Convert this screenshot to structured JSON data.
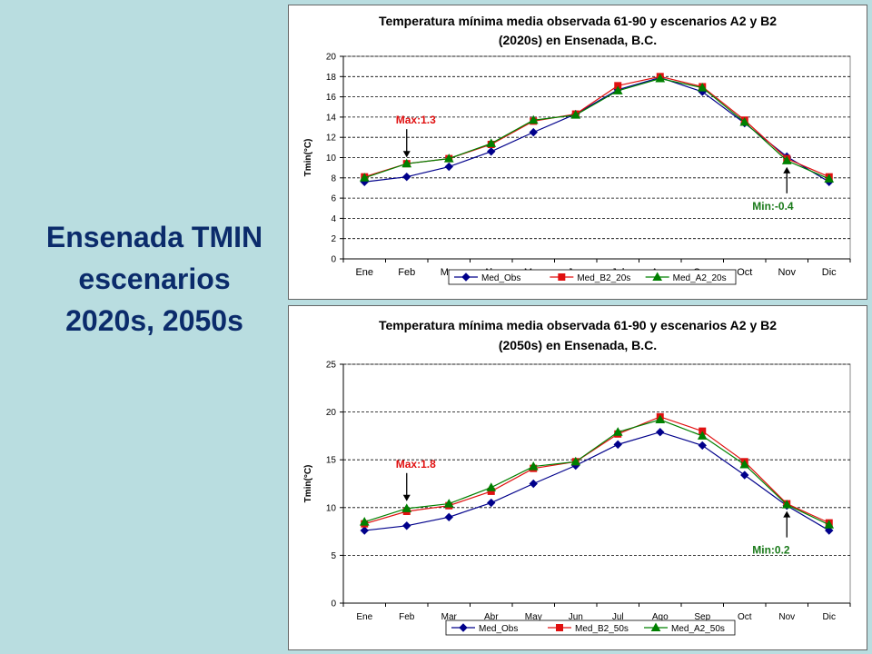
{
  "slide": {
    "title_lines": [
      "Ensenada TMIN",
      "escenarios",
      "2020s, 2050s"
    ]
  },
  "colors": {
    "obs": "#00008b",
    "b2": "#e01010",
    "a2": "#008000",
    "annot_max": "#e01010",
    "annot_min": "#1a7a1a"
  },
  "chart_data": [
    {
      "type": "line",
      "title_lines": [
        "Temperatura mínima media observada 61-90 y escenarios A2 y B2",
        "(2020s) en Ensenada, B.C."
      ],
      "xlabel": "",
      "ylabel": "Tmin(°C)",
      "categories": [
        "Ene",
        "Feb",
        "Mar",
        "Abr",
        "May",
        "Jun",
        "Jul",
        "Ago",
        "Sep",
        "Oct",
        "Nov",
        "Dic"
      ],
      "ylim": [
        0,
        20
      ],
      "yticks": [
        0,
        2,
        4,
        6,
        8,
        10,
        12,
        14,
        16,
        18,
        20
      ],
      "grid": true,
      "legend": "bottom",
      "series": [
        {
          "name": "Med_Obs",
          "marker": "diamond",
          "values": [
            7.6,
            8.1,
            9.1,
            10.6,
            12.5,
            14.3,
            16.7,
            17.9,
            16.5,
            13.4,
            10.1,
            7.6
          ]
        },
        {
          "name": "Med_B2_20s",
          "marker": "square",
          "values": [
            8.1,
            9.4,
            9.9,
            11.3,
            13.6,
            14.3,
            17.1,
            18.0,
            17.0,
            13.7,
            9.9,
            8.1
          ]
        },
        {
          "name": "Med_A2_20s",
          "marker": "triangle",
          "values": [
            8.0,
            9.4,
            9.9,
            11.4,
            13.7,
            14.2,
            16.6,
            17.8,
            16.9,
            13.5,
            9.7,
            7.9
          ]
        }
      ],
      "annotations": [
        {
          "text": "Max:1.3",
          "kind": "max",
          "category_index": 1,
          "value": 9.4
        },
        {
          "text": "Min:-0.4",
          "kind": "min",
          "category_index": 10,
          "value": 9.7
        }
      ]
    },
    {
      "type": "line",
      "title_lines": [
        "Temperatura mínima media observada 61-90 y escenarios A2 y B2",
        "(2050s) en Ensenada, B.C."
      ],
      "xlabel": "",
      "ylabel": "Tmin(°C)",
      "categories": [
        "Ene",
        "Feb",
        "Mar",
        "Abr",
        "May",
        "Jun",
        "Jul",
        "Ago",
        "Sep",
        "Oct",
        "Nov",
        "Dic"
      ],
      "ylim": [
        0,
        25
      ],
      "yticks": [
        0,
        5,
        10,
        15,
        20,
        25
      ],
      "grid": true,
      "legend": "bottom",
      "series": [
        {
          "name": "Med_Obs",
          "marker": "diamond",
          "values": [
            7.6,
            8.1,
            9.0,
            10.5,
            12.5,
            14.4,
            16.6,
            17.9,
            16.5,
            13.4,
            10.2,
            7.6
          ]
        },
        {
          "name": "Med_B2_50s",
          "marker": "square",
          "values": [
            8.3,
            9.6,
            10.2,
            11.7,
            14.1,
            14.8,
            17.7,
            19.5,
            18.0,
            14.8,
            10.4,
            8.4
          ]
        },
        {
          "name": "Med_A2_50s",
          "marker": "triangle",
          "values": [
            8.5,
            9.9,
            10.4,
            12.1,
            14.3,
            14.8,
            17.9,
            19.2,
            17.5,
            14.5,
            10.3,
            8.2
          ]
        }
      ],
      "annotations": [
        {
          "text": "Max:1.8",
          "kind": "max",
          "category_index": 1,
          "value": 10.0
        },
        {
          "text": "Min:0.2",
          "kind": "min",
          "category_index": 10,
          "value": 10.3
        }
      ]
    }
  ]
}
